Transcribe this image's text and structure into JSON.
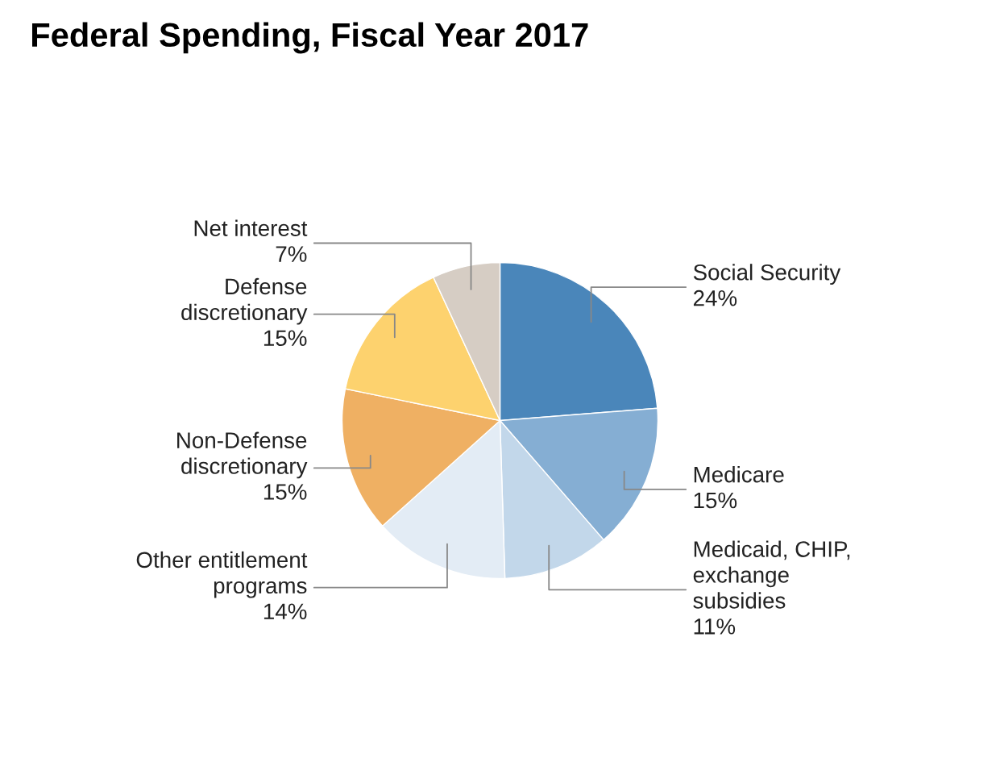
{
  "chart_data": {
    "type": "pie",
    "title": "Federal Spending, Fiscal Year 2017",
    "categories": [
      "Social Security",
      "Medicare",
      "Medicaid, CHIP,\nexchange\nsubsidies",
      "Other entitlement\nprograms",
      "Non-Defense\ndiscretionary",
      "Defense\ndiscretionary",
      "Net interest"
    ],
    "values": [
      24,
      15,
      11,
      14,
      15,
      15,
      7
    ],
    "value_labels": [
      "24%",
      "15%",
      "11%",
      "14%",
      "15%",
      "15%",
      "7%"
    ],
    "colors": [
      "#4a86ba",
      "#85aed3",
      "#c2d7ea",
      "#e3ecf5",
      "#efb063",
      "#fdd26e",
      "#d6cdc4"
    ],
    "legend": false
  }
}
